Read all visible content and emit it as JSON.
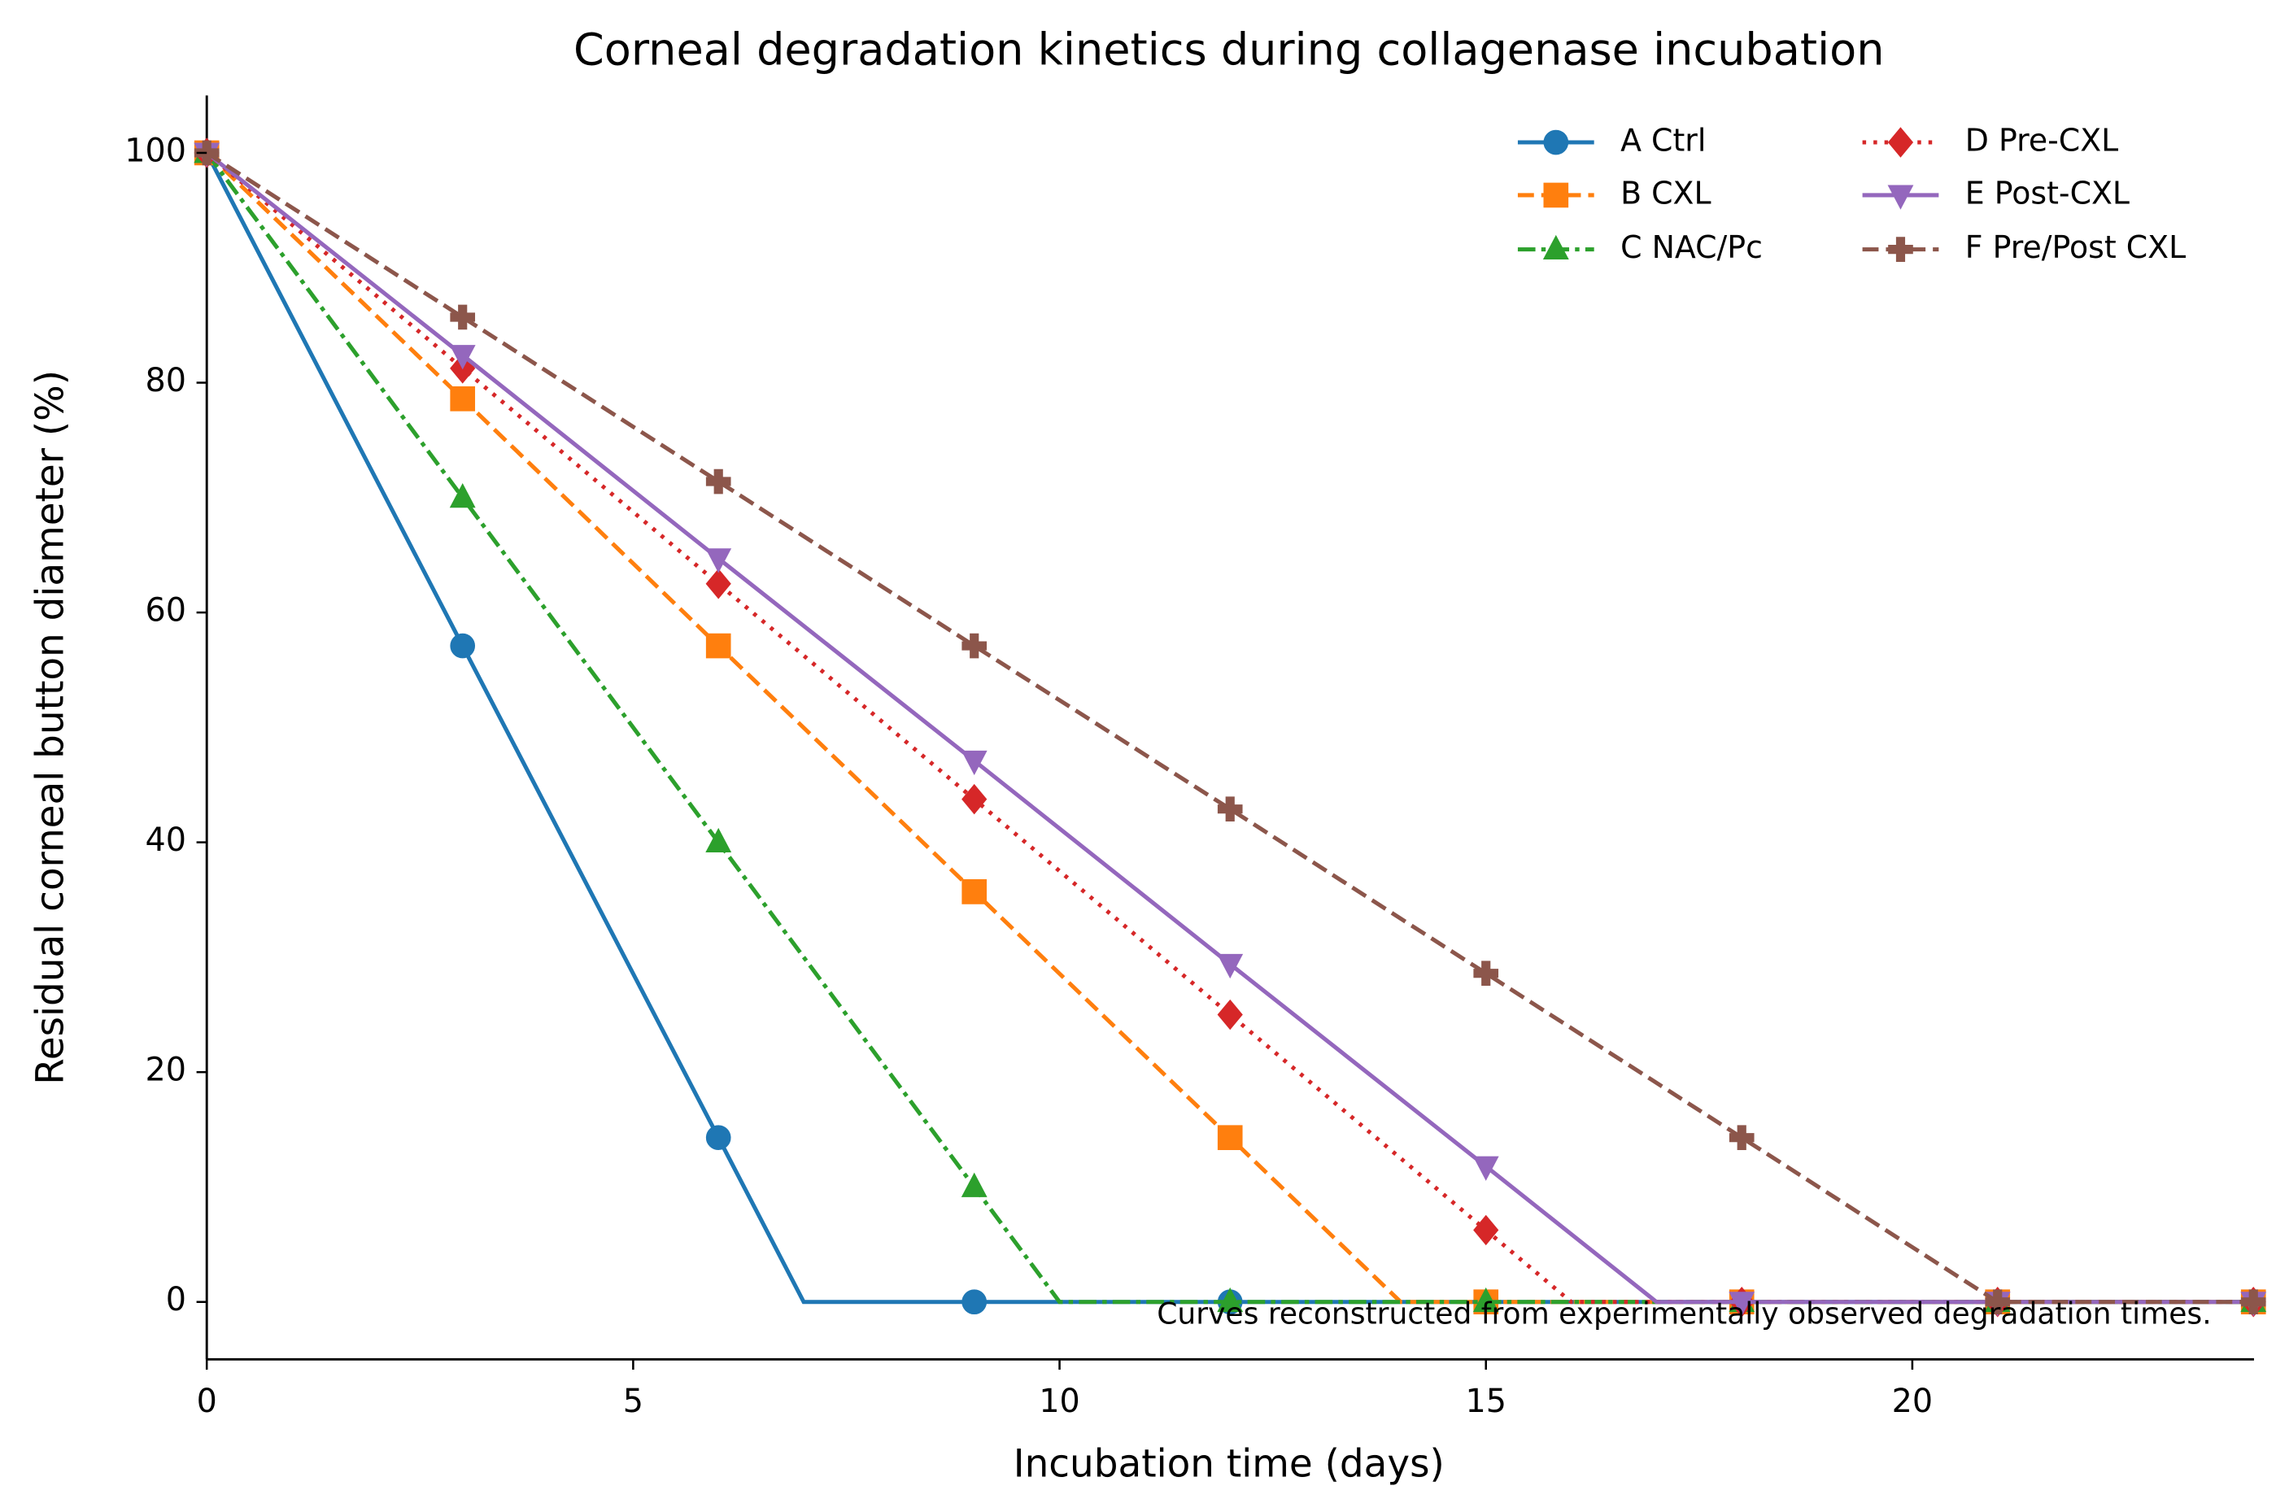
{
  "chart_data": {
    "type": "line",
    "title": "Corneal degradation kinetics during collagenase incubation",
    "xlabel": "Incubation time (days)",
    "ylabel": "Residual corneal button diameter (%)",
    "annotation": "Curves reconstructed from experimentally observed degradation times.",
    "xlim": [
      0,
      24
    ],
    "ylim": [
      -5,
      105
    ],
    "xticks": [
      0,
      5,
      10,
      15,
      20
    ],
    "yticks": [
      0,
      20,
      40,
      60,
      80,
      100
    ],
    "marker_step": 3,
    "legend": "upper right",
    "series": [
      {
        "name": "A Ctrl",
        "color": "#1f77b4",
        "linestyle": "solid",
        "marker": "circle",
        "x": [
          0,
          3,
          6,
          7,
          9,
          12,
          15,
          18,
          21,
          24
        ],
        "values": [
          100,
          57.1,
          14.3,
          0,
          0,
          0,
          0,
          0,
          0,
          0
        ]
      },
      {
        "name": "B CXL",
        "color": "#ff7f0e",
        "linestyle": "dashed",
        "marker": "square",
        "x": [
          0,
          3,
          6,
          9,
          12,
          14,
          15,
          18,
          21,
          24
        ],
        "values": [
          100,
          78.6,
          57.1,
          35.7,
          14.3,
          0,
          0,
          0,
          0,
          0
        ]
      },
      {
        "name": "C NAC/Pc",
        "color": "#2ca02c",
        "linestyle": "dashdot",
        "marker": "triangle-up",
        "x": [
          0,
          3,
          6,
          9,
          10,
          12,
          15,
          18,
          21,
          24
        ],
        "values": [
          100,
          70,
          40,
          10,
          0,
          0,
          0,
          0,
          0,
          0
        ]
      },
      {
        "name": "D Pre-CXL",
        "color": "#d62728",
        "linestyle": "dotted",
        "marker": "diamond",
        "x": [
          0,
          3,
          6,
          9,
          12,
          15,
          16,
          18,
          21,
          24
        ],
        "values": [
          100,
          81.25,
          62.5,
          43.75,
          25,
          6.25,
          0,
          0,
          0,
          0
        ]
      },
      {
        "name": "E Post-CXL",
        "color": "#9467bd",
        "linestyle": "solid",
        "marker": "triangle-down",
        "x": [
          0,
          3,
          6,
          9,
          12,
          15,
          17,
          18,
          21,
          24
        ],
        "values": [
          100,
          82.4,
          64.7,
          47.1,
          29.4,
          11.8,
          0,
          0,
          0,
          0
        ]
      },
      {
        "name": "F Pre/Post CXL",
        "color": "#8c564b",
        "linestyle": "dashed",
        "marker": "plus",
        "x": [
          0,
          3,
          6,
          9,
          12,
          15,
          18,
          21,
          24
        ],
        "values": [
          100,
          85.7,
          71.4,
          57.1,
          42.9,
          28.6,
          14.3,
          0,
          0
        ]
      }
    ]
  }
}
